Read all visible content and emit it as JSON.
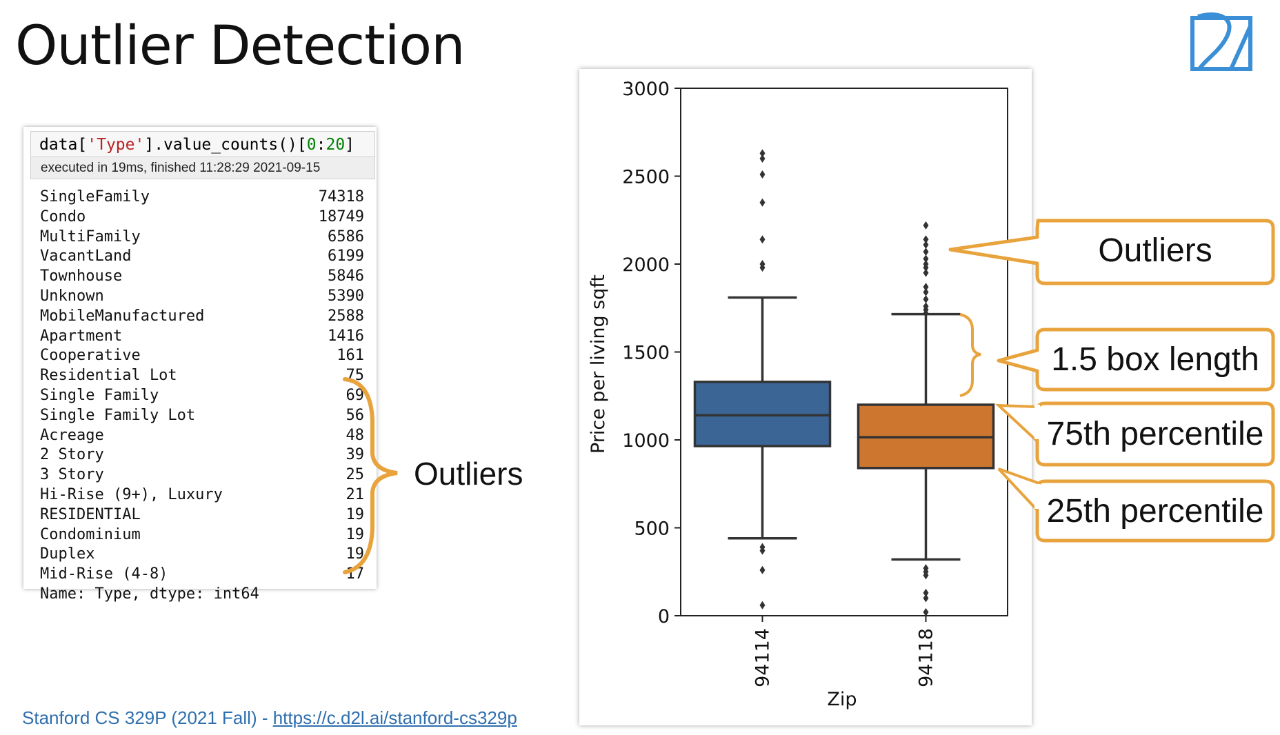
{
  "slide": {
    "title": "Outlier Detection",
    "footer_text": "Stanford CS 329P (2021 Fall) - ",
    "footer_link": "https://c.d2l.ai/stanford-cs329p"
  },
  "notebook": {
    "code": {
      "prefix": "data[",
      "string_arg": "'Type'",
      "middle": "].value_counts()[",
      "slice_start": "0",
      "colon": ":",
      "slice_end": "20",
      "suffix": "]"
    },
    "exec_info": "executed in 19ms, finished 11:28:29 2021-09-15",
    "rows": [
      {
        "name": "SingleFamily",
        "count": "74318"
      },
      {
        "name": "Condo",
        "count": "18749"
      },
      {
        "name": "MultiFamily",
        "count": "6586"
      },
      {
        "name": "VacantLand",
        "count": "6199"
      },
      {
        "name": "Townhouse",
        "count": "5846"
      },
      {
        "name": "Unknown",
        "count": "5390"
      },
      {
        "name": "MobileManufactured",
        "count": "2588"
      },
      {
        "name": "Apartment",
        "count": "1416"
      },
      {
        "name": "Cooperative",
        "count": "161"
      },
      {
        "name": "Residential Lot",
        "count": "75"
      },
      {
        "name": "Single Family",
        "count": "69"
      },
      {
        "name": "Single Family Lot",
        "count": "56"
      },
      {
        "name": "Acreage",
        "count": "48"
      },
      {
        "name": "2 Story",
        "count": "39"
      },
      {
        "name": "3 Story",
        "count": "25"
      },
      {
        "name": "Hi-Rise (9+), Luxury",
        "count": "21"
      },
      {
        "name": "RESIDENTIAL",
        "count": "19"
      },
      {
        "name": "Condominium",
        "count": "19"
      },
      {
        "name": "Duplex",
        "count": "19"
      },
      {
        "name": "Mid-Rise (4-8)",
        "count": "17"
      }
    ],
    "cut_row": "Name: Type, dtype: int64"
  },
  "left_annotation": {
    "label": "Outliers"
  },
  "callouts": {
    "outliers": "Outliers",
    "box_length": "1.5 box length",
    "p75": "75th percentile",
    "p25": "25th percentile"
  },
  "colors": {
    "accent": "#e8a33d",
    "box_blue": "#3a6595",
    "box_orange": "#cd7630",
    "link": "#2f6fae",
    "logo": "#3b8fd6"
  },
  "chart_data": {
    "type": "box",
    "xlabel": "Zip",
    "ylabel": "Price per living sqft",
    "ylim": [
      0,
      3000
    ],
    "yticks": [
      0,
      500,
      1000,
      1500,
      2000,
      2500,
      3000
    ],
    "grid": false,
    "categories": [
      "94114",
      "94118"
    ],
    "boxes": [
      {
        "category": "94114",
        "color": "#3a6595",
        "q1": 965,
        "median": 1140,
        "q3": 1330,
        "whisker_low": 440,
        "whisker_high": 1810,
        "outliers": [
          2630,
          2600,
          2510,
          2350,
          2140,
          2000,
          1980,
          390,
          370,
          260,
          60
        ]
      },
      {
        "category": "94118",
        "color": "#cd7630",
        "q1": 840,
        "median": 1015,
        "q3": 1200,
        "whisker_low": 320,
        "whisker_high": 1715,
        "outliers": [
          2220,
          2140,
          2110,
          2070,
          2030,
          2000,
          1980,
          1950,
          1870,
          1840,
          1800,
          1760,
          1740,
          1720,
          270,
          250,
          230,
          130,
          100,
          20
        ]
      }
    ]
  }
}
